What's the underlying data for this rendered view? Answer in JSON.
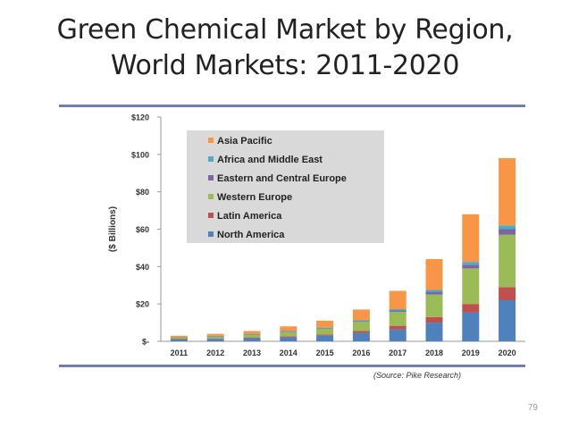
{
  "slide": {
    "title_line1": "Green Chemical Market by Region,",
    "title_line2": "World Markets: 2011-2020",
    "page_number": "79"
  },
  "chart_data": {
    "type": "bar",
    "stacked": true,
    "ylabel": "($ Billions)",
    "ylim": [
      0,
      120
    ],
    "yticks": [
      0,
      20,
      40,
      60,
      80,
      100,
      120
    ],
    "ytick_labels": [
      "$-",
      "$20",
      "$40",
      "$60",
      "$80",
      "$100",
      "$120"
    ],
    "categories": [
      "2011",
      "2012",
      "2013",
      "2014",
      "2015",
      "2016",
      "2017",
      "2018",
      "2019",
      "2020"
    ],
    "series": [
      {
        "name": "North America",
        "color": "#4f81bd",
        "values": [
          1.0,
          1.3,
          1.7,
          2.2,
          3.0,
          4.5,
          6.5,
          10.0,
          15.5,
          22.0
        ]
      },
      {
        "name": "Latin America",
        "color": "#c0504d",
        "values": [
          0.2,
          0.3,
          0.4,
          0.5,
          0.7,
          1.0,
          1.8,
          3.0,
          4.5,
          7.0
        ]
      },
      {
        "name": "Western Europe",
        "color": "#9bbb59",
        "values": [
          0.8,
          1.1,
          1.5,
          2.2,
          3.2,
          5.0,
          7.5,
          12.0,
          19.0,
          28.0
        ]
      },
      {
        "name": "Eastern and Central Europe",
        "color": "#8064a2",
        "values": [
          0.1,
          0.1,
          0.2,
          0.3,
          0.3,
          0.4,
          0.7,
          1.5,
          2.0,
          3.0
        ]
      },
      {
        "name": "Africa and Middle East",
        "color": "#4bacc6",
        "values": [
          0.1,
          0.1,
          0.2,
          0.3,
          0.3,
          0.5,
          0.7,
          1.0,
          1.5,
          2.0
        ]
      },
      {
        "name": "Asia Pacific",
        "color": "#f79646",
        "values": [
          0.8,
          1.1,
          1.5,
          2.5,
          3.5,
          5.6,
          9.8,
          16.5,
          25.5,
          36.0
        ]
      }
    ],
    "legend_order": [
      "Asia Pacific",
      "Africa and Middle East",
      "Eastern and Central Europe",
      "Western Europe",
      "Latin America",
      "North America"
    ],
    "legend_position": "top-left",
    "source": "(Source: Pike Research)"
  }
}
